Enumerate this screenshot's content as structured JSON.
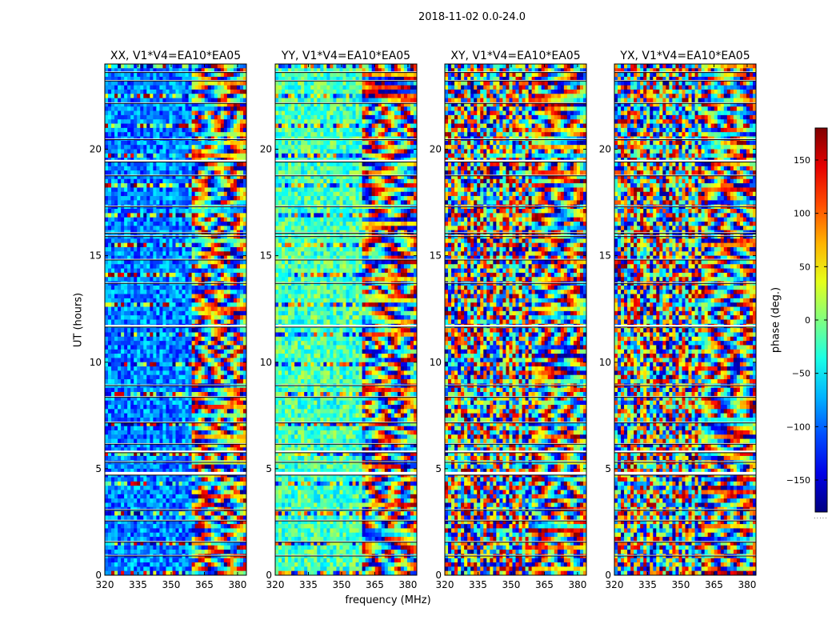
{
  "chart_data": {
    "type": "heatmap",
    "suptitle": "2018-11-02 0.0-24.0",
    "xlabel": "frequency (MHz)",
    "ylabel": "UT (hours)",
    "x_range": [
      320,
      384
    ],
    "y_range": [
      0,
      24
    ],
    "x_ticks": [
      "320",
      "335",
      "350",
      "365",
      "380"
    ],
    "y_ticks": [
      "0",
      "5",
      "10",
      "15",
      "20"
    ],
    "panels": [
      {
        "title": "XX, V1*V4=EA10*EA05",
        "mean_phase": -90
      },
      {
        "title": "YY, V1*V4=EA10*EA05",
        "mean_phase": -20
      },
      {
        "title": "XY, V1*V4=EA10*EA05",
        "mean_phase": null
      },
      {
        "title": "YX, V1*V4=EA10*EA05",
        "mean_phase": null
      }
    ],
    "colorbar": {
      "label": "phase (deg.)",
      "range": [
        -180,
        180
      ],
      "ticks": [
        "150",
        "100",
        "50",
        "0",
        "−50",
        "−100",
        "−150"
      ],
      "colormap": "jet",
      "note": "....."
    },
    "gaps_ut_hours": [
      [
        0.9,
        0.95
      ],
      [
        1.55,
        1.6
      ],
      [
        2.55,
        2.6
      ],
      [
        3.05,
        3.1
      ],
      [
        4.7,
        4.85
      ],
      [
        5.3,
        5.35
      ],
      [
        5.75,
        5.85
      ],
      [
        6.15,
        6.2
      ],
      [
        7.15,
        7.2
      ],
      [
        8.35,
        8.4
      ],
      [
        8.9,
        8.95
      ],
      [
        11.65,
        11.75
      ],
      [
        13.7,
        13.75
      ],
      [
        14.8,
        14.85
      ],
      [
        15.9,
        15.95
      ],
      [
        16.05,
        16.1
      ],
      [
        17.3,
        17.35
      ],
      [
        18.75,
        18.8
      ],
      [
        19.4,
        19.5
      ],
      [
        20.45,
        20.5
      ],
      [
        22.15,
        22.2
      ],
      [
        23.2,
        23.25
      ],
      [
        23.6,
        23.65
      ]
    ]
  }
}
